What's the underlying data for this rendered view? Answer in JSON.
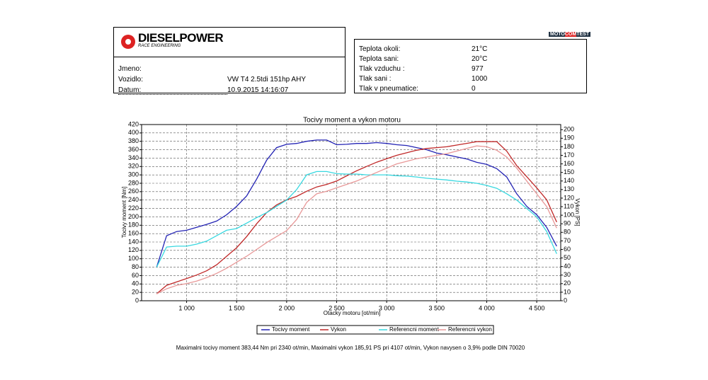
{
  "header": {
    "logo": "DIESELPOWER",
    "logo_sub": "RACE ENGINEERING",
    "badge": [
      "MOTO",
      "COM",
      "TEST"
    ],
    "left_rows": [
      {
        "label": "Jmeno:"
      },
      {
        "label": "Vozidlo:",
        "value": "VW T4 2.5tdi 151hp AHY"
      },
      {
        "label": "Datum:",
        "value": "10.9.2015 14:16:07"
      }
    ],
    "right_rows": [
      {
        "label": "Teplota okoli:",
        "value": "21°C"
      },
      {
        "label": "Teplota sani:",
        "value": "20°C"
      },
      {
        "label": "Tlak vzduchu :",
        "value": "977"
      },
      {
        "label": "Tlak sani :",
        "value": "1000"
      },
      {
        "label": "Tlak v pneumatice:",
        "value": "0"
      }
    ]
  },
  "chart_data": {
    "type": "line",
    "title": "Tocivy moment a vykon motoru",
    "x_label": "Otacky motoru [ot/min]",
    "y_label": "Tocivy moment [Nm]",
    "y2_label": "Vykon [PS]",
    "x": [
      700,
      800,
      900,
      1000,
      1100,
      1200,
      1300,
      1400,
      1500,
      1600,
      1700,
      1800,
      1900,
      2000,
      2100,
      2200,
      2300,
      2400,
      2500,
      2600,
      2700,
      2800,
      2900,
      3000,
      3100,
      3200,
      3300,
      3400,
      3500,
      3600,
      3700,
      3800,
      3900,
      4000,
      4100,
      4200,
      4300,
      4400,
      4500,
      4600,
      4700
    ],
    "series": [
      {
        "name": "Tocivy moment",
        "color": "#2323b4",
        "values": [
          80,
          155,
          165,
          168,
          175,
          182,
          190,
          205,
          225,
          250,
          290,
          335,
          365,
          373,
          375,
          380,
          383,
          383,
          372,
          373,
          375,
          375,
          377,
          375,
          372,
          370,
          365,
          360,
          352,
          348,
          343,
          338,
          330,
          325,
          315,
          295,
          255,
          225,
          205,
          175,
          130
        ]
      },
      {
        "name": "Vykon",
        "color": "#c02828",
        "axis": "y2",
        "values": [
          8,
          18,
          22,
          26,
          30,
          35,
          42,
          52,
          62,
          75,
          90,
          103,
          112,
          118,
          122,
          128,
          133,
          136,
          140,
          146,
          152,
          157,
          162,
          166,
          170,
          173,
          176,
          178,
          179,
          180,
          182,
          184,
          186,
          186,
          186,
          175,
          158,
          145,
          132,
          118,
          92
        ]
      },
      {
        "name": "Referencni moment",
        "color": "#38d8e0",
        "values": [
          80,
          128,
          130,
          130,
          135,
          142,
          155,
          168,
          172,
          185,
          198,
          210,
          225,
          240,
          265,
          300,
          308,
          308,
          303,
          302,
          302,
          300,
          300,
          300,
          298,
          297,
          295,
          292,
          290,
          288,
          285,
          283,
          280,
          275,
          268,
          255,
          240,
          220,
          200,
          165,
          112
        ]
      },
      {
        "name": "Referencni vykon",
        "color": "#e89898",
        "axis": "y2",
        "values": [
          8,
          14,
          18,
          20,
          23,
          27,
          32,
          38,
          45,
          52,
          60,
          68,
          75,
          82,
          95,
          115,
          125,
          128,
          132,
          136,
          140,
          145,
          150,
          155,
          160,
          163,
          166,
          168,
          170,
          172,
          175,
          178,
          181,
          180,
          176,
          168,
          155,
          140,
          125,
          110,
          85
        ]
      }
    ],
    "xlim": [
      550,
      4740
    ],
    "xticks": [
      {
        "value": 1000,
        "label": "1 000"
      },
      {
        "value": 1500,
        "label": "1 500"
      },
      {
        "value": 2000,
        "label": "2 000"
      },
      {
        "value": 2500,
        "label": "2 500"
      },
      {
        "value": 3000,
        "label": "3 000"
      },
      {
        "value": 3500,
        "label": "3 500"
      },
      {
        "value": 4000,
        "label": "4 000"
      },
      {
        "value": 4500,
        "label": "4 500"
      }
    ],
    "ylim": [
      0,
      420
    ],
    "yticks": [
      0,
      20,
      40,
      60,
      80,
      100,
      120,
      140,
      160,
      180,
      200,
      220,
      240,
      260,
      280,
      300,
      320,
      340,
      360,
      380,
      400,
      420
    ],
    "y2lim": [
      0,
      206
    ],
    "y2ticks": [
      0,
      10,
      20,
      30,
      40,
      50,
      60,
      70,
      80,
      90,
      100,
      110,
      120,
      130,
      140,
      150,
      160,
      170,
      180,
      190,
      200
    ],
    "grid": true,
    "legend": "bottom",
    "footer": "Maximalni tocivy moment 383,44 Nm pri 2340 ot/min,  Maximalni vykon 185,91 PS pri 4107 ot/min,  Vykon navysen o 3,9% podle DIN 70020"
  }
}
